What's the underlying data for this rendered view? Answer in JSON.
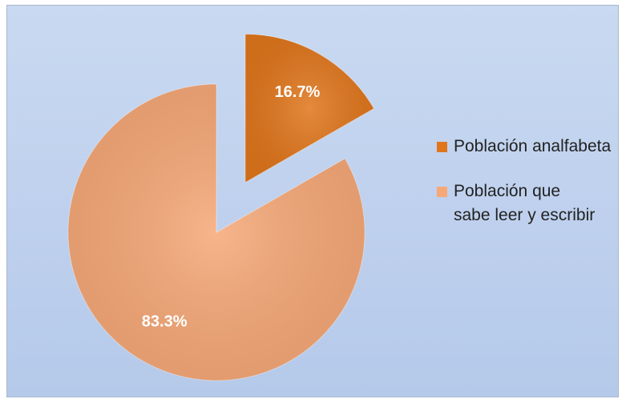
{
  "chart_data": {
    "type": "pie",
    "categories": [
      "Población analfabeta",
      "Población que sabe leer y escribir"
    ],
    "values": [
      16.7,
      83.3
    ],
    "value_labels": [
      "16.7%",
      "83.3%"
    ],
    "colors": [
      "#e0761c",
      "#f6a877"
    ],
    "legend": "right"
  }
}
